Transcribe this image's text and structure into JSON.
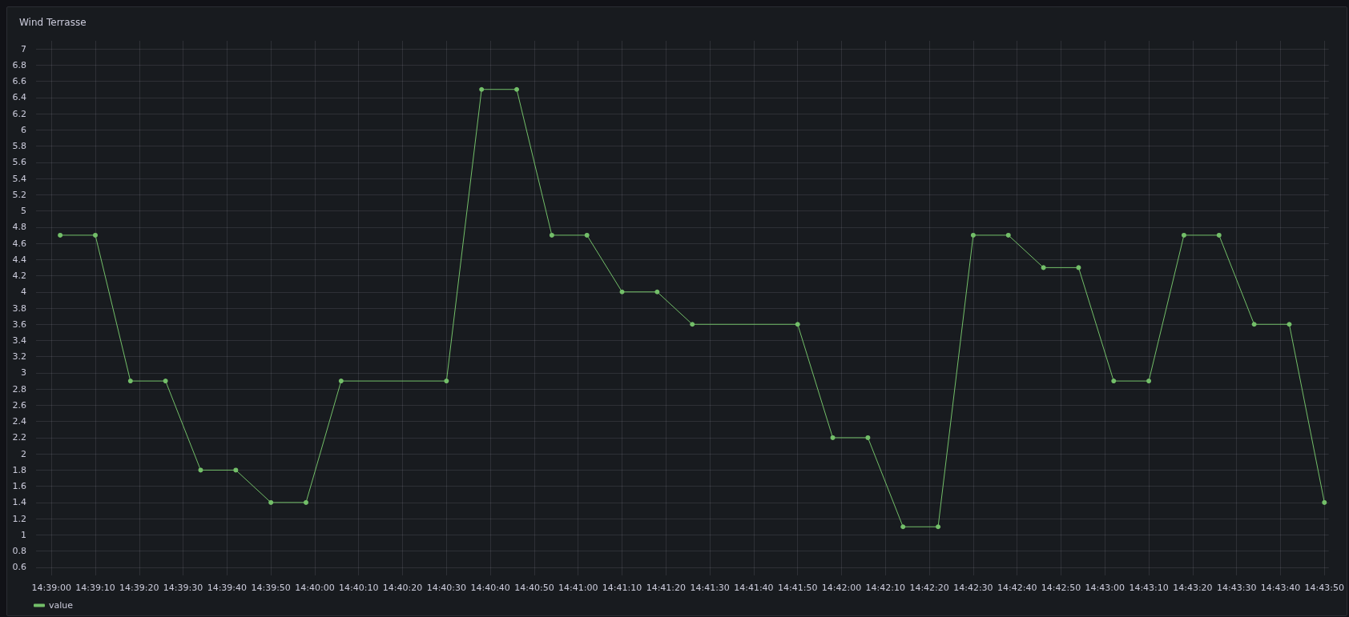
{
  "chart_data": {
    "type": "line",
    "title": "Wind Terrasse",
    "x": [
      14.650556,
      14.652778,
      14.655,
      14.657222,
      14.659444,
      14.661667,
      14.663889,
      14.666111,
      14.668333,
      14.675,
      14.677222,
      14.679444,
      14.681667,
      14.683889,
      14.686111,
      14.688333,
      14.690556,
      14.697222,
      14.699444,
      14.701667,
      14.703889,
      14.706111,
      14.708333,
      14.710556,
      14.712778,
      14.715,
      14.717222,
      14.719444,
      14.721667,
      14.723889,
      14.726111,
      14.728333,
      14.730556
    ],
    "series": [
      {
        "name": "value",
        "color": "#73bf69",
        "values": [
          4.7,
          4.7,
          2.9,
          2.9,
          1.8,
          1.8,
          1.4,
          1.4,
          2.9,
          2.9,
          6.5,
          6.5,
          4.7,
          4.7,
          4.0,
          4.0,
          3.6,
          3.6,
          2.2,
          2.2,
          1.1,
          1.1,
          4.7,
          4.7,
          4.3,
          4.3,
          2.9,
          2.9,
          4.7,
          4.7,
          3.6,
          3.6,
          1.4
        ]
      }
    ],
    "xlim": [
      14.649028,
      14.730833
    ],
    "xticks": [
      {
        "value": 14.65,
        "label": "14:39:00"
      },
      {
        "value": 14.652778,
        "label": "14:39:10"
      },
      {
        "value": 14.655556,
        "label": "14:39:20"
      },
      {
        "value": 14.658333,
        "label": "14:39:30"
      },
      {
        "value": 14.661111,
        "label": "14:39:40"
      },
      {
        "value": 14.663889,
        "label": "14:39:50"
      },
      {
        "value": 14.666667,
        "label": "14:40:00"
      },
      {
        "value": 14.669444,
        "label": "14:40:10"
      },
      {
        "value": 14.672222,
        "label": "14:40:20"
      },
      {
        "value": 14.675,
        "label": "14:40:30"
      },
      {
        "value": 14.677778,
        "label": "14:40:40"
      },
      {
        "value": 14.680556,
        "label": "14:40:50"
      },
      {
        "value": 14.683333,
        "label": "14:41:00"
      },
      {
        "value": 14.686111,
        "label": "14:41:10"
      },
      {
        "value": 14.688889,
        "label": "14:41:20"
      },
      {
        "value": 14.691667,
        "label": "14:41:30"
      },
      {
        "value": 14.694444,
        "label": "14:41:40"
      },
      {
        "value": 14.697222,
        "label": "14:41:50"
      },
      {
        "value": 14.7,
        "label": "14:42:00"
      },
      {
        "value": 14.702778,
        "label": "14:42:10"
      },
      {
        "value": 14.705556,
        "label": "14:42:20"
      },
      {
        "value": 14.708333,
        "label": "14:42:30"
      },
      {
        "value": 14.711111,
        "label": "14:42:40"
      },
      {
        "value": 14.713889,
        "label": "14:42:50"
      },
      {
        "value": 14.716667,
        "label": "14:43:00"
      },
      {
        "value": 14.719444,
        "label": "14:43:10"
      },
      {
        "value": 14.722222,
        "label": "14:43:20"
      },
      {
        "value": 14.725,
        "label": "14:43:30"
      },
      {
        "value": 14.727778,
        "label": "14:43:40"
      },
      {
        "value": 14.730556,
        "label": "14:43:50"
      }
    ],
    "ylim": [
      0.5,
      7.1
    ],
    "yticks": [
      0.6,
      0.8,
      1,
      1.2,
      1.4,
      1.6,
      1.8,
      2,
      2.2,
      2.4,
      2.6,
      2.8,
      3,
      3.2,
      3.4,
      3.6,
      3.8,
      4,
      4.2,
      4.4,
      4.6,
      4.8,
      5,
      5.2,
      5.4,
      5.6,
      5.8,
      6,
      6.2,
      6.4,
      6.6,
      6.8,
      7
    ],
    "grid": true,
    "legend": "bottom left",
    "marker": "circle",
    "line_style": "solid"
  }
}
